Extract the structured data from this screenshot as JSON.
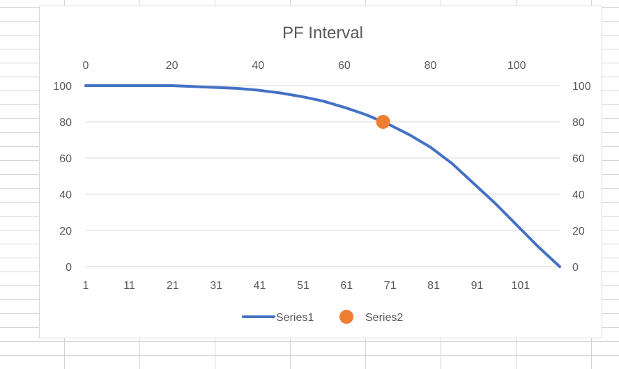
{
  "chart_data": {
    "type": "line",
    "title": "PF Interval",
    "xlabel": "",
    "ylabel": "",
    "primary_x_ticks": [
      "1",
      "11",
      "21",
      "31",
      "41",
      "51",
      "61",
      "71",
      "81",
      "91",
      "101"
    ],
    "secondary_x_ticks": [
      "0",
      "20",
      "40",
      "60",
      "80",
      "100"
    ],
    "y_ticks": [
      "0",
      "20",
      "40",
      "60",
      "80",
      "100"
    ],
    "secondary_y_ticks": [
      "0",
      "20",
      "40",
      "60",
      "80",
      "100"
    ],
    "ylim": [
      0,
      100
    ],
    "secondary_xlim": [
      0,
      110
    ],
    "grid": true,
    "legend": "bottom",
    "series": [
      {
        "name": "Series1",
        "style": "line",
        "color": "#4472C4",
        "x": [
          0,
          10,
          20,
          25,
          30,
          35,
          40,
          45,
          50,
          55,
          60,
          65,
          70,
          75,
          80,
          85,
          90,
          95,
          100,
          105,
          110
        ],
        "y": [
          100,
          100,
          100,
          99.5,
          99,
          98.5,
          97.5,
          96,
          94,
          91.5,
          88,
          84,
          79,
          73,
          66,
          57,
          46,
          35,
          23,
          11,
          0
        ]
      },
      {
        "name": "Series2",
        "style": "marker",
        "color": "#ED7D31",
        "x": [
          69
        ],
        "y": [
          80
        ]
      }
    ]
  }
}
